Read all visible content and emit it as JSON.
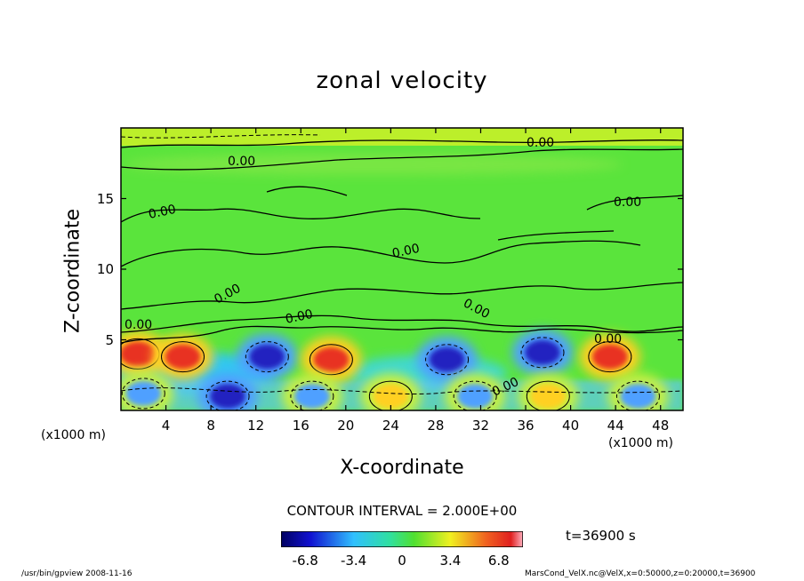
{
  "chart_data": {
    "type": "heatmap",
    "title": "zonal velocity",
    "xlabel": "X-coordinate",
    "ylabel": "Z-coordinate",
    "x_unit_left": "(x1000 m)",
    "x_unit_right": "(x1000 m)",
    "x_ticks": [
      "4",
      "8",
      "12",
      "16",
      "20",
      "24",
      "28",
      "32",
      "36",
      "40",
      "44",
      "48"
    ],
    "y_ticks": [
      "5",
      "10",
      "15"
    ],
    "xlim": [
      0,
      50
    ],
    "ylim": [
      0,
      20
    ],
    "contour_labels": [
      "0.00",
      "0.00",
      "0.00",
      "0.00",
      "0.00",
      "0.00",
      "0.00",
      "0.00",
      "0.00",
      "0.00",
      "0.00"
    ],
    "contour_interval": "CONTOUR INTERVAL = 2.000E+00",
    "colorbar_ticks": [
      "-6.8",
      "-3.4",
      "0",
      "3.4",
      "6.8"
    ],
    "colorbar_range": [
      -8.5,
      8.5
    ],
    "time_label": "t=36900 s",
    "colors": {
      "neg_strong": "#2020c0",
      "neg": "#4fa0ff",
      "zero": "#3fe03f",
      "pos": "#ffd020",
      "pos_strong": "#e83020"
    },
    "cells": [
      {
        "x": 1.5,
        "z": 4.0,
        "v": 7.5
      },
      {
        "x": 5.5,
        "z": 3.8,
        "v": 6.8
      },
      {
        "x": 13.0,
        "z": 3.8,
        "v": -6.0
      },
      {
        "x": 18.7,
        "z": 3.6,
        "v": 7.5
      },
      {
        "x": 29.0,
        "z": 3.6,
        "v": -6.5
      },
      {
        "x": 37.5,
        "z": 4.1,
        "v": -7.5
      },
      {
        "x": 43.5,
        "z": 3.8,
        "v": 6.0
      },
      {
        "x": 9.5,
        "z": 1.0,
        "v": -6.0
      },
      {
        "x": 17.0,
        "z": 1.0,
        "v": -5.5
      },
      {
        "x": 24.0,
        "z": 1.0,
        "v": 4.0
      },
      {
        "x": 31.5,
        "z": 1.0,
        "v": -5.0
      },
      {
        "x": 38.0,
        "z": 1.0,
        "v": 5.0
      },
      {
        "x": 46.0,
        "z": 1.0,
        "v": -4.5
      },
      {
        "x": 2.0,
        "z": 1.2,
        "v": -4.0
      }
    ]
  },
  "footer": {
    "left": "/usr/bin/gpview   2008-11-16",
    "right": "MarsCond_VelX.nc@VelX,x=0:50000,z=0:20000,t=36900"
  }
}
